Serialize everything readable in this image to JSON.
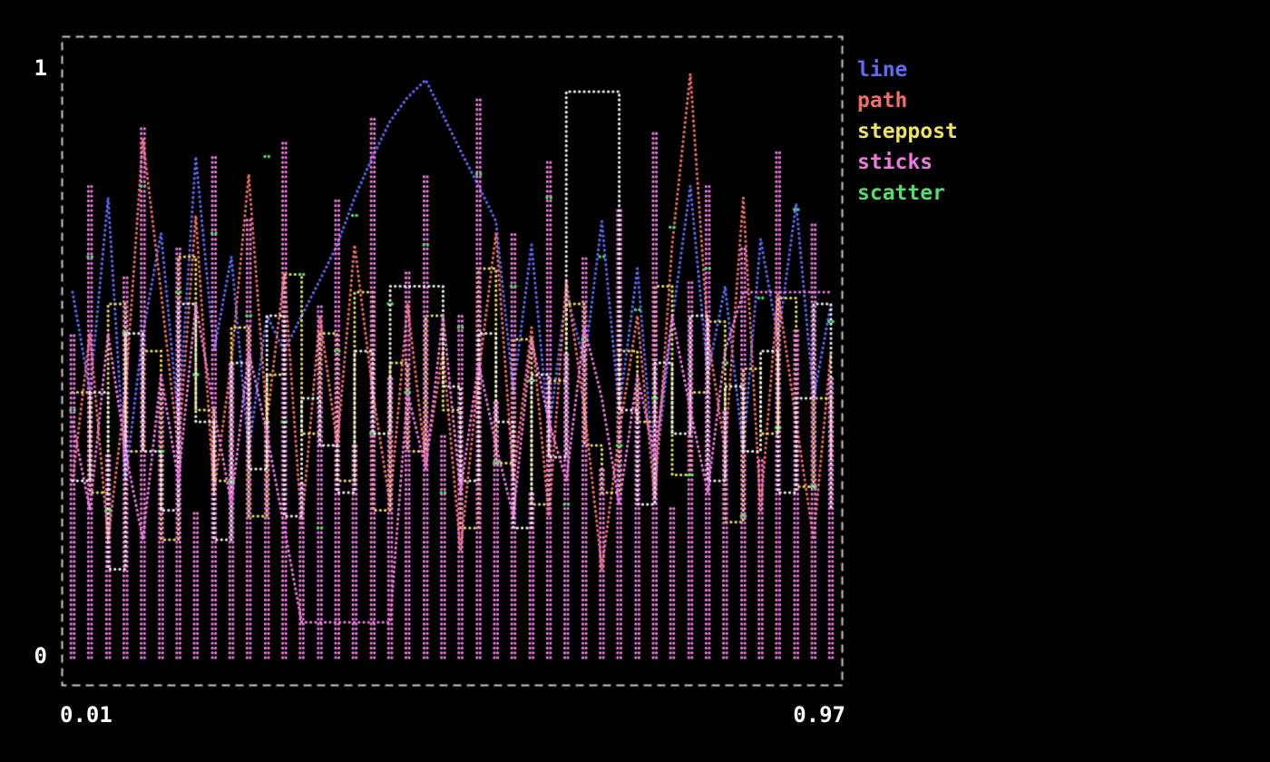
{
  "colors": {
    "background": "#000000",
    "frame": "#c8c8c8",
    "text": "#ffffff"
  },
  "axes": {
    "y_top_label": "1",
    "y_bottom_label": "0",
    "x_left_label": "0.01",
    "x_right_label": "0.97"
  },
  "legend": {
    "position": "right",
    "items": [
      {
        "label": "line",
        "color": "#5c6cf5"
      },
      {
        "label": "path",
        "color": "#ef7060"
      },
      {
        "label": "steppost",
        "color": "#f0e35c"
      },
      {
        "label": "sticks",
        "color": "#ee7ae0"
      },
      {
        "label": "scatter",
        "color": "#52df6e"
      }
    ]
  },
  "chart_data": {
    "type": "mixed",
    "title": "",
    "xlabel": "",
    "ylabel": "",
    "xlim": [
      0.01,
      0.97
    ],
    "ylim": [
      0,
      1
    ],
    "grid": false,
    "legend_position": "outside-right",
    "x": [
      0.01,
      0.032,
      0.055,
      0.077,
      0.099,
      0.122,
      0.144,
      0.166,
      0.189,
      0.211,
      0.233,
      0.256,
      0.278,
      0.3,
      0.323,
      0.345,
      0.367,
      0.39,
      0.412,
      0.434,
      0.457,
      0.479,
      0.501,
      0.524,
      0.546,
      0.568,
      0.591,
      0.613,
      0.635,
      0.658,
      0.68,
      0.702,
      0.725,
      0.747,
      0.769,
      0.792,
      0.814,
      0.836,
      0.859,
      0.881,
      0.903,
      0.926,
      0.948,
      0.97
    ],
    "series": [
      {
        "name": "line",
        "style": "line",
        "color": "#5c6cf5",
        "in_legend": true,
        "y": [
          0.62,
          0.45,
          0.78,
          0.3,
          0.55,
          0.72,
          0.4,
          0.85,
          0.52,
          0.68,
          0.35,
          0.58,
          0.52,
          0.58,
          0.64,
          0.7,
          0.78,
          0.85,
          0.91,
          0.95,
          0.98,
          0.92,
          0.86,
          0.8,
          0.74,
          0.45,
          0.7,
          0.38,
          0.62,
          0.5,
          0.74,
          0.42,
          0.66,
          0.3,
          0.57,
          0.8,
          0.48,
          0.63,
          0.35,
          0.71,
          0.54,
          0.77,
          0.44,
          0.6
        ]
      },
      {
        "name": "path",
        "style": "path",
        "color": "#ef7060",
        "in_legend": true,
        "y": [
          0.3,
          0.55,
          0.2,
          0.45,
          0.88,
          0.62,
          0.35,
          0.75,
          0.28,
          0.5,
          0.82,
          0.4,
          0.65,
          0.22,
          0.58,
          0.36,
          0.7,
          0.45,
          0.26,
          0.6,
          0.33,
          0.52,
          0.18,
          0.48,
          0.72,
          0.3,
          0.56,
          0.24,
          0.64,
          0.42,
          0.15,
          0.38,
          0.58,
          0.27,
          0.7,
          0.99,
          0.55,
          0.35,
          0.78,
          0.25,
          0.62,
          0.4,
          0.2,
          0.52
        ]
      },
      {
        "name": "steppost",
        "style": "steppost",
        "color": "#f0e35c",
        "in_legend": true,
        "y": [
          0.45,
          0.28,
          0.6,
          0.35,
          0.52,
          0.2,
          0.68,
          0.42,
          0.3,
          0.56,
          0.24,
          0.48,
          0.65,
          0.38,
          0.55,
          0.3,
          0.62,
          0.25,
          0.5,
          0.35,
          0.58,
          0.42,
          0.22,
          0.66,
          0.33,
          0.54,
          0.26,
          0.47,
          0.6,
          0.36,
          0.28,
          0.52,
          0.4,
          0.63,
          0.31,
          0.45,
          0.57,
          0.23,
          0.49,
          0.38,
          0.61,
          0.29,
          0.44,
          0.34
        ]
      },
      {
        "name": "sticks",
        "style": "sticks",
        "color": "#ee7ae0",
        "in_legend": true,
        "y": [
          0.55,
          0.8,
          0.35,
          0.65,
          0.9,
          0.45,
          0.7,
          0.25,
          0.85,
          0.5,
          0.75,
          0.4,
          0.88,
          0.3,
          0.6,
          0.78,
          0.36,
          0.92,
          0.48,
          0.66,
          0.82,
          0.38,
          0.58,
          0.95,
          0.44,
          0.72,
          0.28,
          0.84,
          0.52,
          0.68,
          0.32,
          0.76,
          0.46,
          0.89,
          0.26,
          0.64,
          0.8,
          0.42,
          0.7,
          0.34,
          0.86,
          0.56,
          0.74,
          0.48
        ]
      },
      {
        "name": "scatter",
        "style": "scatter",
        "color": "#52df6e",
        "in_legend": true,
        "y": [
          0.42,
          0.68,
          0.25,
          0.55,
          0.8,
          0.35,
          0.62,
          0.48,
          0.72,
          0.3,
          0.58,
          0.85,
          0.4,
          0.65,
          0.22,
          0.52,
          0.75,
          0.38,
          0.6,
          0.45,
          0.7,
          0.28,
          0.56,
          0.82,
          0.33,
          0.63,
          0.47,
          0.78,
          0.26,
          0.54,
          0.68,
          0.36,
          0.59,
          0.44,
          0.73,
          0.31,
          0.66,
          0.5,
          0.24,
          0.61,
          0.39,
          0.76,
          0.29,
          0.57
        ]
      },
      {
        "name": "white-steps",
        "style": "steppost",
        "color": "#f2f2f2",
        "in_legend": false,
        "y": [
          0.3,
          0.45,
          0.15,
          0.55,
          0.35,
          0.25,
          0.6,
          0.4,
          0.2,
          0.5,
          0.32,
          0.58,
          0.24,
          0.44,
          0.36,
          0.28,
          0.52,
          0.38,
          0.63,
          0.63,
          0.63,
          0.46,
          0.3,
          0.55,
          0.4,
          0.22,
          0.48,
          0.34,
          0.96,
          0.96,
          0.96,
          0.42,
          0.26,
          0.5,
          0.38,
          0.58,
          0.3,
          0.46,
          0.35,
          0.52,
          0.28,
          0.44,
          0.6,
          0.25
        ]
      },
      {
        "name": "magenta-path",
        "style": "path",
        "color": "#ee7ae0",
        "in_legend": false,
        "y": [
          0.4,
          0.25,
          0.55,
          0.35,
          0.2,
          0.48,
          0.3,
          0.6,
          0.42,
          0.26,
          0.52,
          0.38,
          0.22,
          0.06,
          0.06,
          0.06,
          0.06,
          0.06,
          0.06,
          0.45,
          0.32,
          0.58,
          0.28,
          0.5,
          0.36,
          0.24,
          0.54,
          0.4,
          0.3,
          0.56,
          0.44,
          0.26,
          0.48,
          0.34,
          0.58,
          0.42,
          0.28,
          0.52,
          0.62,
          0.62,
          0.62,
          0.62,
          0.62,
          0.62
        ]
      }
    ]
  }
}
